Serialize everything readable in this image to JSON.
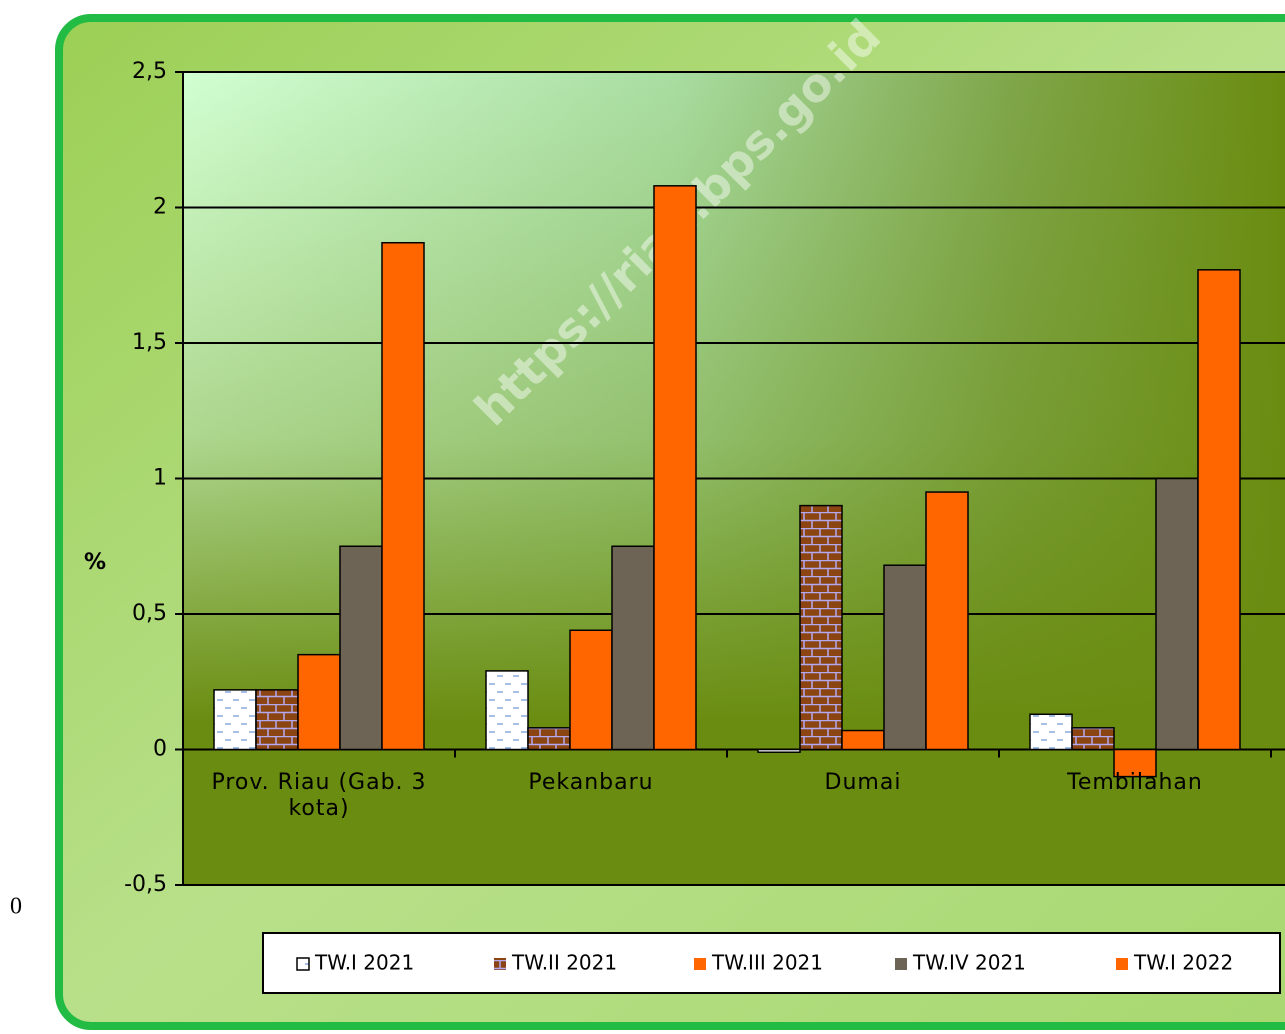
{
  "chart_data": {
    "type": "bar",
    "y_label": "%",
    "watermark": "https://riau.bps.go.id",
    "annotation": "0",
    "categories": [
      "Prov. Riau (Gab. 3 kota)",
      "Pekanbaru",
      "Dumai",
      "Tembilahan"
    ],
    "series": [
      {
        "name": "TW.I 2021",
        "color": "#ffffff",
        "values": [
          0.22,
          0.29,
          -0.01,
          0.13
        ]
      },
      {
        "name": "TW.II 2021",
        "color": "#8b4513",
        "values": [
          0.22,
          0.08,
          0.9,
          0.08
        ]
      },
      {
        "name": "TW.III 2021",
        "color": "#ff6600",
        "values": [
          0.35,
          0.44,
          0.07,
          -0.1
        ]
      },
      {
        "name": "TW.IV 2021",
        "color": "#6e6456",
        "values": [
          0.75,
          0.75,
          0.68,
          1.0
        ]
      },
      {
        "name": "TW.I 2022",
        "color": "#ff6600",
        "values": [
          1.87,
          2.08,
          0.95,
          1.77
        ]
      }
    ],
    "ylim": [
      -0.5,
      2.5
    ],
    "yticks": [
      {
        "value": -0.5,
        "label": "-0,5"
      },
      0,
      {
        "value": 0.5,
        "label": "0,5"
      },
      1,
      {
        "value": 1.5,
        "label": "1,5"
      },
      2,
      {
        "value": 2.5,
        "label": "2,5"
      }
    ],
    "grid": true,
    "legend": "bottom"
  }
}
